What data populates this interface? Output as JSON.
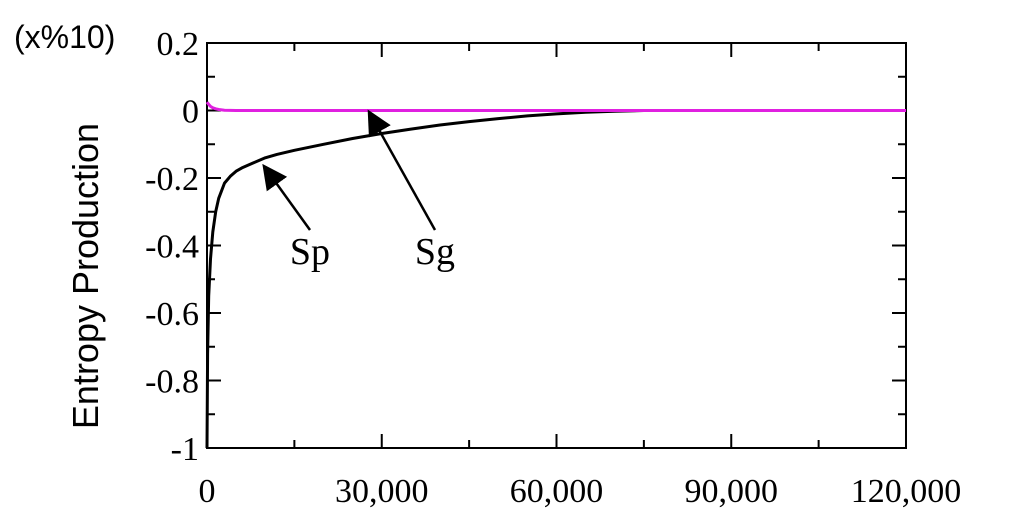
{
  "chart_data": {
    "type": "line",
    "title": "",
    "xlabel": "",
    "ylabel": "Entropy Production",
    "y_multiplier": "(x%10)",
    "xlim": [
      0,
      120000
    ],
    "ylim": [
      -1,
      0.2
    ],
    "x_ticks": [
      0,
      30000,
      60000,
      90000,
      120000
    ],
    "x_tick_labels": [
      "0",
      "30,000",
      "60,000",
      "90,000",
      "120,000"
    ],
    "y_ticks": [
      0.2,
      0,
      -0.2,
      -0.4,
      -0.6,
      -0.8,
      -1
    ],
    "y_tick_labels": [
      "0.2",
      "0",
      "-0.2",
      "-0.4",
      "-0.6",
      "-0.8",
      "-1"
    ],
    "grid": false,
    "legend": "none",
    "series": [
      {
        "name": "Sp",
        "color": "#000000",
        "x": [
          0,
          100,
          300,
          600,
          1000,
          1500,
          2000,
          3000,
          4000,
          5000,
          6000,
          8000,
          10000,
          12000,
          15000,
          20000,
          25000,
          30000,
          35000,
          40000,
          45000,
          50000,
          55000,
          60000,
          65000,
          70000,
          75000,
          80000,
          90000,
          100000,
          110000,
          120000
        ],
        "values": [
          -1.0,
          -0.72,
          -0.55,
          -0.44,
          -0.36,
          -0.3,
          -0.26,
          -0.215,
          -0.195,
          -0.18,
          -0.17,
          -0.155,
          -0.14,
          -0.13,
          -0.118,
          -0.1,
          -0.083,
          -0.068,
          -0.055,
          -0.043,
          -0.033,
          -0.024,
          -0.016,
          -0.01,
          -0.005,
          -0.002,
          0.0,
          0.0,
          0.0,
          0.0,
          0.0,
          0.0
        ]
      },
      {
        "name": "Sg",
        "color": "#e020e0",
        "x": [
          0,
          300,
          600,
          1000,
          1500,
          2000,
          3000,
          5000,
          10000,
          30000,
          60000,
          90000,
          120000
        ],
        "values": [
          0.025,
          0.018,
          0.012,
          0.008,
          0.005,
          0.003,
          0.001,
          0.0,
          0.0,
          0.0,
          0.0,
          0.0,
          0.0
        ]
      }
    ],
    "annotations": [
      {
        "text": "Sp",
        "target_series": "Sp",
        "target_x": 10000,
        "target_y": -0.17
      },
      {
        "text": "Sg",
        "target_series": "Sg",
        "target_x": 28000,
        "target_y": -0.01
      }
    ]
  }
}
